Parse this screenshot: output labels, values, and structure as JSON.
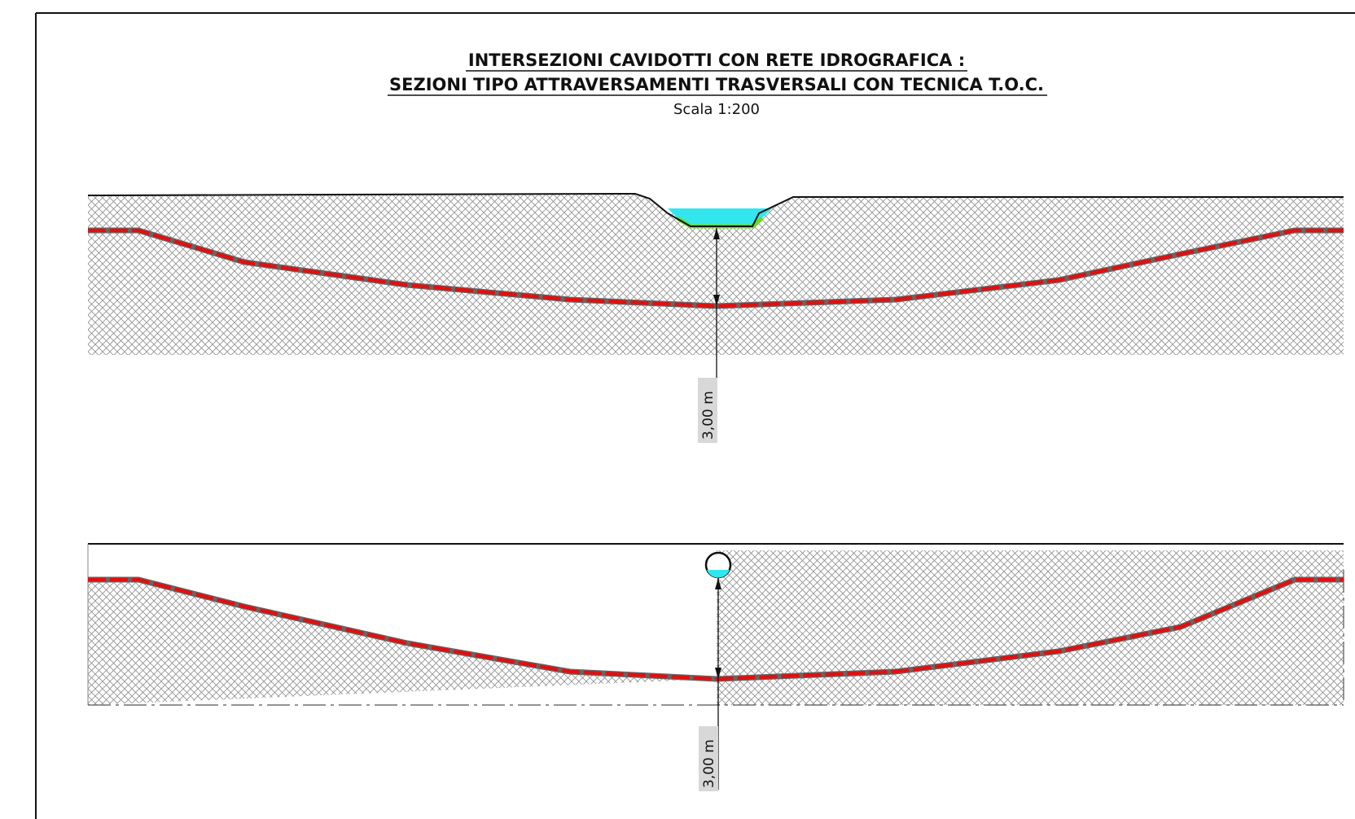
{
  "title": {
    "line1": "INTERSEZIONI CAVIDOTTI CON RETE IDROGRAFICA :",
    "line2": "SEZIONI TIPO ATTRAVERSAMENTI TRASVERSALI CON  TECNICA T.O.C.",
    "scale": "Scala 1:200"
  },
  "sections": [
    {
      "id": "section-1",
      "feature": "open-channel",
      "depth_label": "3,00 m"
    },
    {
      "id": "section-2",
      "feature": "culvert-pipe",
      "depth_label": "3,00 m"
    }
  ],
  "colors": {
    "soil_hatch": "#8f8f8f",
    "cable_red": "#e01010",
    "water": "#33e6ee",
    "channel_bed": "#66dd22",
    "line": "#111111",
    "dim_label_bg": "#d8d8d8"
  }
}
